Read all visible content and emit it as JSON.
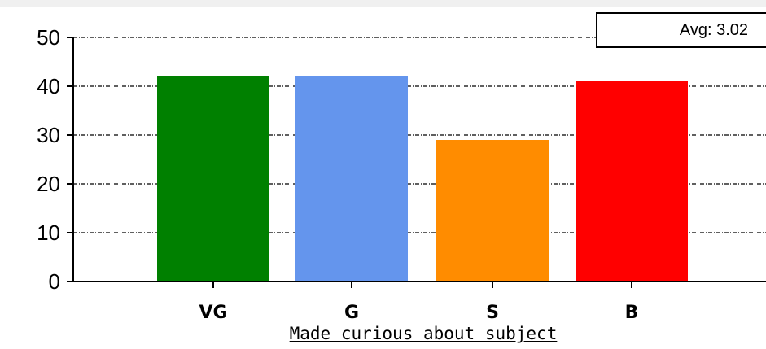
{
  "chart_data": {
    "type": "bar",
    "title": "",
    "xlabel": "Made curious about subject",
    "ylabel": "",
    "categories": [
      "VG",
      "G",
      "S",
      "B"
    ],
    "values": [
      42,
      42,
      29,
      41
    ],
    "colors": [
      "#008000",
      "#6495ed",
      "#ff8c00",
      "#ff0000"
    ],
    "ylim": [
      0,
      50
    ],
    "yticks": [
      "0",
      "10",
      "20",
      "30",
      "40",
      "50"
    ],
    "grid": true,
    "grid_style": "dash-dot",
    "annotation": "Avg: 3.02"
  }
}
